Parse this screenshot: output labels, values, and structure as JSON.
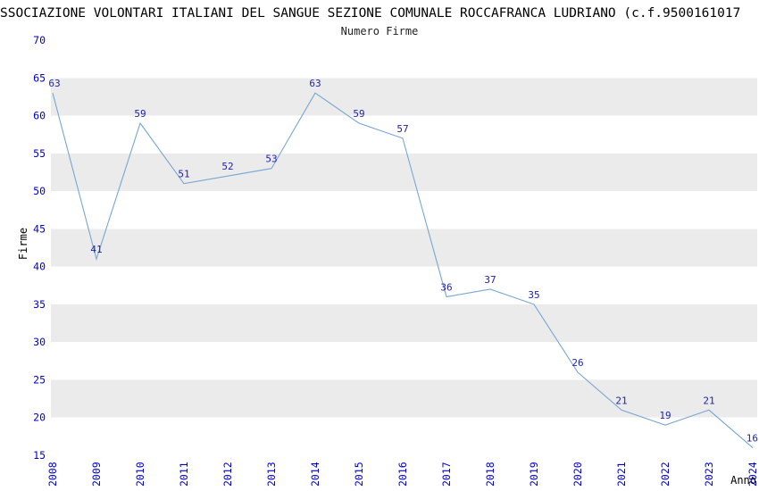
{
  "chart": {
    "title": "SSOCIAZIONE VOLONTARI ITALIANI DEL SANGUE SEZIONE COMUNALE ROCCAFRANCA LUDRIANO (c.f.9500161017",
    "subtitle": "Numero Firme",
    "xlabel": "Anno",
    "ylabel": "Firme"
  },
  "chart_data": {
    "type": "line",
    "title": "Numero Firme",
    "categories": [
      "2008",
      "2009",
      "2010",
      "2011",
      "2012",
      "2013",
      "2014",
      "2015",
      "2016",
      "2017",
      "2018",
      "2019",
      "2020",
      "2021",
      "2022",
      "2023",
      "2024"
    ],
    "values": [
      63,
      41,
      59,
      51,
      52,
      53,
      63,
      59,
      57,
      36,
      37,
      35,
      26,
      21,
      19,
      21,
      16
    ],
    "xlabel": "Anno",
    "ylabel": "Firme",
    "ylim": [
      15,
      70
    ],
    "ytick_step": 5,
    "grid": "alternating-horizontal-bands",
    "legend": "none",
    "colors": {
      "line": "#79a6d2",
      "band": "#ebebeb",
      "tick_label": "#0000cc",
      "point_label": "#2222aa",
      "title": "#000000",
      "subtitle": "#222222"
    }
  }
}
